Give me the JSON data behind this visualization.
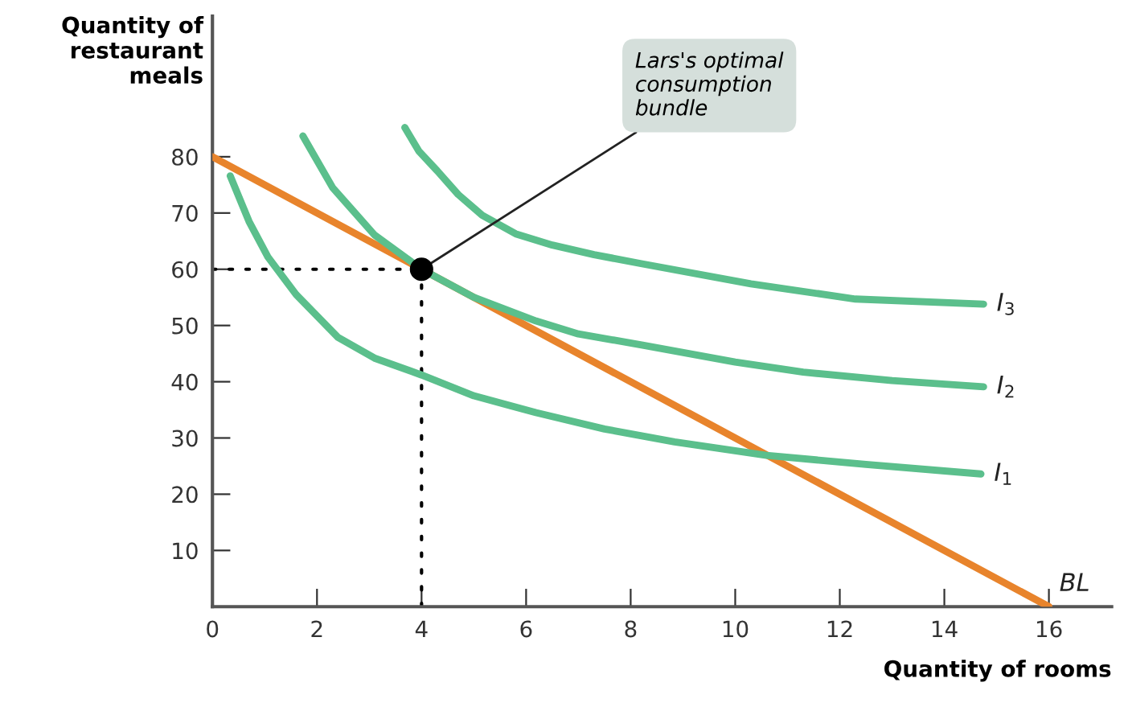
{
  "chart_data": {
    "type": "line",
    "xlabel": "Quantity of rooms",
    "ylabel": "Quantity of restaurant meals",
    "xlim": [
      0,
      17.2
    ],
    "ylim": [
      0,
      105
    ],
    "xticks": [
      0,
      2,
      4,
      6,
      8,
      10,
      12,
      14,
      16
    ],
    "yticks": [
      10,
      20,
      30,
      40,
      50,
      60,
      70,
      80
    ],
    "grid": false,
    "legend": false,
    "marker": "none",
    "line_style": "solid",
    "series": [
      {
        "name": "BL",
        "color": "#e8842c",
        "x": [
          0,
          16
        ],
        "values": [
          80,
          0
        ]
      },
      {
        "name": "I$_{1}$",
        "color": "#5bbf8c",
        "x": [
          0.34,
          0.7,
          1.06,
          1.6,
          2.4,
          3.1,
          4,
          5,
          6.19,
          7.5,
          8.84,
          10.6,
          12.5,
          14.7
        ],
        "values": [
          76.6,
          68.5,
          62.2,
          55.5,
          47.9,
          44.2,
          41.2,
          37.5,
          34.5,
          31.6,
          29.3,
          26.9,
          25.3,
          23.6
        ]
      },
      {
        "name": "I$_{2}$",
        "color": "#5bbf8c",
        "x": [
          1.73,
          2.3,
          3.1,
          4,
          5,
          6.19,
          7,
          8.23,
          10,
          11.3,
          13,
          14.75
        ],
        "values": [
          83.7,
          74.5,
          66.1,
          60,
          55,
          50.8,
          48.5,
          46.5,
          43.5,
          41.7,
          40.2,
          39.1
        ]
      },
      {
        "name": "I$_{3}$",
        "color": "#5bbf8c",
        "x": [
          3.68,
          3.95,
          4.3,
          4.7,
          5.16,
          5.8,
          6.5,
          7.3,
          8.2,
          10.3,
          12.3,
          14.75
        ],
        "values": [
          85.2,
          81,
          77.5,
          73.3,
          69.6,
          66.3,
          64.3,
          62.6,
          61,
          57.4,
          54.7,
          53.8
        ]
      },
      {
        "type": "line",
        "line_style": "dotted",
        "color": "#000000",
        "x": [
          0,
          4
        ],
        "values": [
          60,
          60
        ]
      },
      {
        "type": "line",
        "line_style": "dotted",
        "color": "#000000",
        "x": [
          4,
          4
        ],
        "values": [
          0,
          60
        ]
      },
      {
        "type": "scatter",
        "marker": "circle",
        "color": "#000000",
        "x": [
          4
        ],
        "values": [
          60
        ]
      }
    ],
    "annotations": [
      {
        "text": "Lars's optimal consumption bundle",
        "x": 4,
        "y": 60
      }
    ]
  }
}
